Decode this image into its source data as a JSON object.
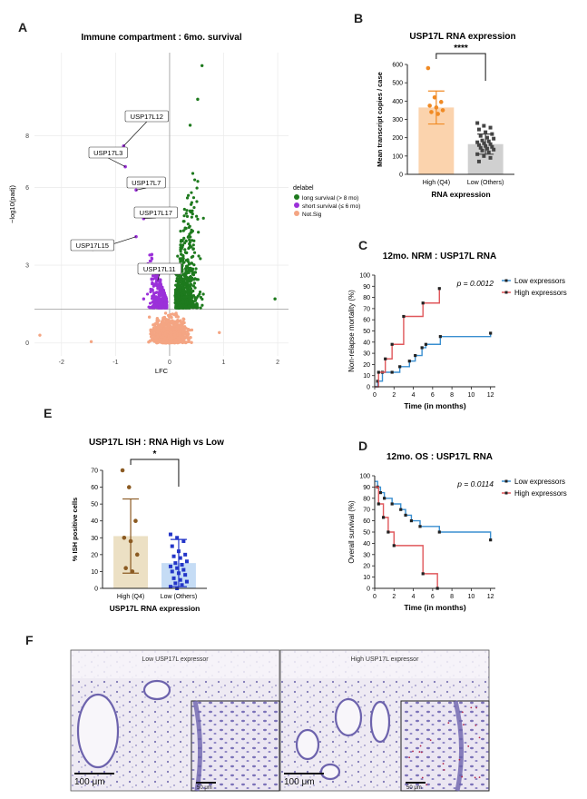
{
  "panel_letters": {
    "A": "A",
    "B": "B",
    "C": "C",
    "D": "D",
    "E": "E",
    "F": "F"
  },
  "panelA": {
    "title": "Immune compartment : 6mo. survival",
    "legend_title": "delabel",
    "legend_items": [
      "long survival (> 8 mo)",
      "short survival (≤ 6 mo)",
      "Not.Sig"
    ],
    "colors": {
      "long": "#1e7a1e",
      "short": "#9b30d9",
      "nonsig": "#f4a583"
    },
    "gene_labels": [
      "USP17L12",
      "USP17L3",
      "USP17L7",
      "USP17L17",
      "USP17L15",
      "USP17L11"
    ]
  },
  "panelB": {
    "title": "USP17L RNA expression",
    "significance": "****",
    "colors": {
      "high": "#f08a24",
      "high_bar": "#fbd3ad",
      "low": "#444444",
      "low_bar": "#d0d0d0"
    }
  },
  "panelC": {
    "title": "12mo. NRM : USP17L RNA",
    "pvalue": "p = 0.0012",
    "legend": [
      "Low expressors",
      "High expressors"
    ],
    "colors": {
      "low": "#3a8fd0",
      "high": "#e0575b"
    }
  },
  "panelD": {
    "title": "12mo. OS : USP17L RNA",
    "pvalue": "p = 0.0114",
    "legend": [
      "Low expressors",
      "High expressors"
    ],
    "colors": {
      "low": "#3a8fd0",
      "high": "#e0575b"
    }
  },
  "panelE": {
    "title": "USP17L ISH : RNA High vs Low",
    "significance": "*",
    "colors": {
      "high": "#8b5a22",
      "high_bar": "#ece0c4",
      "low": "#2436c8",
      "low_bar": "#c5dcf5"
    }
  },
  "panelF": {
    "low_label": "Low USP17L expressor",
    "high_label": "High USP17L expressor",
    "scale_main": "100 μm",
    "scale_inset": "50 μm"
  },
  "chart_data": [
    {
      "id": "A",
      "type": "scatter",
      "title": "Immune compartment : 6mo. survival",
      "xlabel": "LFC",
      "ylabel": "−log10(padj)",
      "xlim": [
        -2.5,
        2.2
      ],
      "ylim": [
        -0.5,
        11.2
      ],
      "xticks": [
        -2,
        -1,
        0,
        1,
        2
      ],
      "yticks": [
        0,
        3,
        6,
        8
      ],
      "labeled_points": [
        {
          "label": "USP17L12",
          "x": -0.85,
          "y": 7.6
        },
        {
          "label": "USP17L3",
          "x": -0.82,
          "y": 6.8
        },
        {
          "label": "USP17L7",
          "x": -0.62,
          "y": 5.9
        },
        {
          "label": "USP17L17",
          "x": -0.48,
          "y": 4.8
        },
        {
          "label": "USP17L15",
          "x": -0.62,
          "y": 4.1
        },
        {
          "label": "USP17L11",
          "x": -0.22,
          "y": 2.4
        }
      ],
      "outliers": [
        {
          "x": 0.6,
          "y": 10.7,
          "group": "long"
        },
        {
          "x": 0.52,
          "y": 9.4,
          "group": "long"
        },
        {
          "x": 0.38,
          "y": 8.4,
          "group": "long"
        },
        {
          "x": 1.95,
          "y": 1.7,
          "group": "long"
        },
        {
          "x": -0.48,
          "y": 1.7,
          "group": "short"
        },
        {
          "x": -0.32,
          "y": 1.8,
          "group": "short"
        },
        {
          "x": -2.4,
          "y": 0.3,
          "group": "nonsig"
        },
        {
          "x": -1.45,
          "y": 0.05,
          "group": "nonsig"
        },
        {
          "x": 0.92,
          "y": 0.4,
          "group": "nonsig"
        }
      ],
      "significance_threshold": 1.3
    },
    {
      "id": "B",
      "type": "bar",
      "title": "USP17L RNA expression",
      "categories": [
        "High (Q4)",
        "Low (Others)"
      ],
      "values": [
        365,
        165
      ],
      "errors": [
        90,
        55
      ],
      "points": [
        [
          580,
          420,
          395,
          375,
          365,
          350,
          340,
          330
        ],
        [
          280,
          265,
          255,
          245,
          230,
          220,
          210,
          200,
          195,
          185,
          180,
          175,
          170,
          165,
          160,
          155,
          150,
          145,
          140,
          135,
          130,
          120,
          110,
          100,
          90,
          70
        ]
      ],
      "xlabel": "RNA expression",
      "ylabel": "Mean transcript copies / case",
      "ylim": [
        0,
        600
      ],
      "yticks": [
        0,
        100,
        200,
        300,
        400,
        500,
        600
      ]
    },
    {
      "id": "C",
      "type": "line",
      "title": "12mo. NRM : USP17L RNA",
      "xlabel": "Time (in months)",
      "ylabel": "Non-relapse mortality (%)",
      "xlim": [
        0,
        12.5
      ],
      "ylim": [
        0,
        100
      ],
      "xticks": [
        0,
        2,
        4,
        6,
        8,
        10,
        12
      ],
      "yticks": [
        0,
        10,
        20,
        30,
        40,
        50,
        60,
        70,
        80,
        90,
        100
      ],
      "series": [
        {
          "name": "Low expressors",
          "x": [
            0,
            0.3,
            0.8,
            1.8,
            2.6,
            3.6,
            4.2,
            4.9,
            5.3,
            6.8,
            12
          ],
          "y": [
            0,
            5,
            13,
            13,
            18,
            23,
            28,
            35,
            38,
            45,
            48
          ]
        },
        {
          "name": "High expressors",
          "x": [
            0,
            0.4,
            1.1,
            1.8,
            3.0,
            5.0,
            6.7
          ],
          "y": [
            0,
            13,
            25,
            38,
            63,
            75,
            88
          ]
        }
      ]
    },
    {
      "id": "D",
      "type": "line",
      "title": "12mo. OS : USP17L RNA",
      "xlabel": "Time (in months)",
      "ylabel": "Overall survival (%)",
      "xlim": [
        0,
        12.5
      ],
      "ylim": [
        0,
        100
      ],
      "xticks": [
        0,
        2,
        4,
        6,
        8,
        10,
        12
      ],
      "yticks": [
        0,
        10,
        20,
        30,
        40,
        50,
        60,
        70,
        80,
        90,
        100
      ],
      "series": [
        {
          "name": "Low expressors",
          "x": [
            0,
            0.3,
            0.6,
            1.0,
            1.8,
            2.7,
            3.2,
            3.8,
            4.7,
            6.7,
            12
          ],
          "y": [
            95,
            90,
            85,
            80,
            75,
            70,
            65,
            60,
            55,
            50,
            43
          ]
        },
        {
          "name": "High expressors",
          "x": [
            0,
            0.4,
            0.9,
            1.4,
            2.0,
            5.0,
            6.5
          ],
          "y": [
            90,
            75,
            63,
            50,
            38,
            13,
            0
          ]
        }
      ]
    },
    {
      "id": "E",
      "type": "bar",
      "title": "USP17L ISH : RNA High vs Low",
      "categories": [
        "High (Q4)",
        "Low (Others)"
      ],
      "values": [
        31,
        15
      ],
      "errors": [
        22,
        14
      ],
      "points": [
        [
          70,
          60,
          40,
          30,
          28,
          20,
          12,
          10
        ],
        [
          32,
          30,
          28,
          25,
          22,
          20,
          19,
          18,
          16,
          15,
          14,
          13,
          12,
          11,
          10,
          9,
          8,
          6,
          5,
          4,
          3,
          2,
          1,
          0
        ]
      ],
      "xlabel": "USP17L RNA expression",
      "ylabel": "% ISH positive cells",
      "ylim": [
        0,
        70
      ],
      "yticks": [
        0,
        10,
        20,
        30,
        40,
        50,
        60,
        70
      ]
    }
  ]
}
